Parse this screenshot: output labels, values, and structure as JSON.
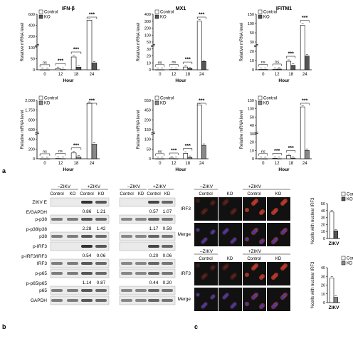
{
  "panel_labels": {
    "a": "a",
    "b": "b",
    "c": "c"
  },
  "chart_data": [
    {
      "type": "bar",
      "title": "IFN-β",
      "ylabel": "Relative mRNA level",
      "xlabel": "Hour",
      "categories": [
        "0",
        "12",
        "18",
        "24"
      ],
      "series": [
        {
          "name": "Control",
          "values": [
            1,
            15,
            150,
            580
          ]
        },
        {
          "name": "KO",
          "values": [
            1,
            3,
            30,
            80
          ]
        }
      ],
      "yticks": [
        "0",
        "50",
        "100",
        "200",
        "400",
        "600"
      ],
      "significance": [
        "ns",
        "***",
        "***",
        "***"
      ],
      "ylim": [
        0,
        650
      ],
      "axis_break": true
    },
    {
      "type": "bar",
      "title": "MX1",
      "ylabel": "Relative mRNA level",
      "xlabel": "Hour",
      "categories": [
        "0",
        "12",
        "18",
        "24"
      ],
      "series": [
        {
          "name": "Control",
          "values": [
            1,
            2,
            20,
            350
          ]
        },
        {
          "name": "KO",
          "values": [
            1,
            2,
            9,
            60
          ]
        }
      ],
      "yticks": [
        "0",
        "10",
        "20",
        "30",
        "50",
        "100",
        "200",
        "300",
        "400"
      ],
      "significance": [
        "ns",
        "ns",
        "***",
        "***"
      ],
      "ylim": [
        0,
        400
      ],
      "axis_break": true
    },
    {
      "type": "bar",
      "title": "IFITM1",
      "ylabel": "Relative mRNA level",
      "xlabel": "Hour",
      "categories": [
        "0",
        "12",
        "18",
        "24"
      ],
      "series": [
        {
          "name": "Control",
          "values": [
            1,
            1.5,
            23,
            120
          ]
        },
        {
          "name": "KO",
          "values": [
            1,
            2,
            12,
            37
          ]
        }
      ],
      "yticks": [
        "0",
        "10",
        "20",
        "30",
        "50",
        "100",
        "150"
      ],
      "significance": [
        "ns",
        "ns",
        "***",
        "***"
      ],
      "ylim": [
        0,
        150
      ],
      "axis_break": true
    },
    {
      "type": "bar",
      "title": "",
      "ylabel": "Relative mRNA level",
      "xlabel": "Hour",
      "categories": [
        "0",
        "12",
        "18",
        "24"
      ],
      "series": [
        {
          "name": "Control",
          "values": [
            1,
            10,
            200,
            1900
          ]
        },
        {
          "name": "KD",
          "values": [
            1,
            5,
            60,
            500
          ]
        }
      ],
      "yticks": [
        "0",
        "200",
        "400",
        "600",
        "800",
        "1,750",
        "2,000"
      ],
      "significance": [
        "ns",
        "ns",
        "***",
        "***"
      ],
      "ylim": [
        0,
        2000
      ],
      "axis_break": true
    },
    {
      "type": "bar",
      "title": "",
      "ylabel": "Relative mRNA level",
      "xlabel": "Hour",
      "categories": [
        "0",
        "12",
        "18",
        "24"
      ],
      "series": [
        {
          "name": "Control",
          "values": [
            1,
            8,
            60,
            600
          ]
        },
        {
          "name": "KD",
          "values": [
            1,
            1.5,
            15,
            150
          ]
        }
      ],
      "yticks": [
        "0",
        "50",
        "100",
        "150",
        "200",
        "450",
        "550"
      ],
      "significance": [
        "ns",
        "***",
        "***",
        "***"
      ],
      "ylim": [
        0,
        650
      ],
      "axis_break": true
    },
    {
      "type": "bar",
      "title": "",
      "ylabel": "Relative mRNA level",
      "xlabel": "Hour",
      "categories": [
        "0",
        "12",
        "18",
        "24"
      ],
      "series": [
        {
          "name": "Control",
          "values": [
            1,
            4,
            25,
            400
          ]
        },
        {
          "name": "KD",
          "values": [
            0.5,
            1,
            5,
            65
          ]
        }
      ],
      "yticks": [
        "0",
        "10",
        "20",
        "30",
        "40",
        "50",
        "100",
        "150"
      ],
      "significance": [
        "ns",
        "***",
        "***",
        "***"
      ],
      "ylim": [
        0,
        450
      ],
      "axis_break": true
    },
    {
      "type": "bar",
      "title": "",
      "ylabel": "%cells with nuclear IRF3",
      "xlabel": "ZIKV",
      "categories": [
        "ZIKV"
      ],
      "series": [
        {
          "name": "Control",
          "values": [
            38
          ]
        },
        {
          "name": "KO",
          "values": [
            11
          ]
        }
      ],
      "yticks": [
        "0",
        "10",
        "20",
        "30",
        "40",
        "50"
      ],
      "ylim": [
        0,
        50
      ]
    },
    {
      "type": "bar",
      "title": "",
      "ylabel": "%cells with nuclear IRF3",
      "xlabel": "ZIKV",
      "categories": [
        "ZIKV"
      ],
      "series": [
        {
          "name": "Control",
          "values": [
            28
          ]
        },
        {
          "name": "KD",
          "values": [
            6
          ]
        }
      ],
      "yticks": [
        "0",
        "10",
        "20",
        "30",
        "40"
      ],
      "ylim": [
        0,
        40
      ]
    }
  ],
  "western_blots": {
    "left": {
      "conditions": [
        "–ZIKV",
        "+ZIKV"
      ],
      "lanes": [
        "Control",
        "KO",
        "Control",
        "KO"
      ],
      "rows": [
        {
          "label": "ZIKV E",
          "type": "band"
        },
        {
          "label": "E/GAPDH",
          "type": "value",
          "values": [
            "",
            "",
            "0.86",
            "1.21"
          ]
        },
        {
          "label": "p-p38",
          "type": "band"
        },
        {
          "label": "p-p38/p38",
          "type": "value",
          "values": [
            "",
            "",
            "2.28",
            "1.42"
          ]
        },
        {
          "label": "p38",
          "type": "band"
        },
        {
          "label": "p-IRF3",
          "type": "band"
        },
        {
          "label": "p-IRF3/IRF3",
          "type": "value",
          "values": [
            "",
            "",
            "0.54",
            "0.06"
          ]
        },
        {
          "label": "IRF3",
          "type": "band"
        },
        {
          "label": "p-p65",
          "type": "band"
        },
        {
          "label": "p-p65/p65",
          "type": "value",
          "values": [
            "",
            "",
            "1.14",
            "0.87"
          ]
        },
        {
          "label": "p65",
          "type": "band"
        },
        {
          "label": "GAPDH",
          "type": "band"
        }
      ]
    },
    "right": {
      "conditions": [
        "–ZIKV",
        "+ZIKV"
      ],
      "lanes": [
        "Control",
        "KD",
        "Control",
        "KD"
      ],
      "values": [
        [
          "",
          "",
          "0.57",
          "1.07"
        ],
        [
          "",
          "",
          "1.17",
          "0.59"
        ],
        [
          "",
          "",
          "0.20",
          "0.06"
        ],
        [
          "",
          "",
          "0.44",
          "0.20"
        ]
      ]
    }
  },
  "microscopy": {
    "top": {
      "conditions": [
        "–ZIKV",
        "+ZIKV"
      ],
      "columns": [
        "Control",
        "KO",
        "Control",
        "KO"
      ],
      "rows": [
        "IRF3",
        "Merge"
      ]
    },
    "bottom": {
      "conditions": [
        "–ZIKV",
        "+ZIKV"
      ],
      "columns": [
        "Control",
        "KD",
        "Control",
        "KD"
      ],
      "rows": [
        "IRF3",
        "Merge"
      ]
    }
  },
  "colors": {
    "control": "#ffffff",
    "ko": "#555555",
    "kd": "#888888",
    "irf3_red": "#c0392b",
    "dapi_blue": "#3b3bb0",
    "dark_bg": "#111111"
  }
}
